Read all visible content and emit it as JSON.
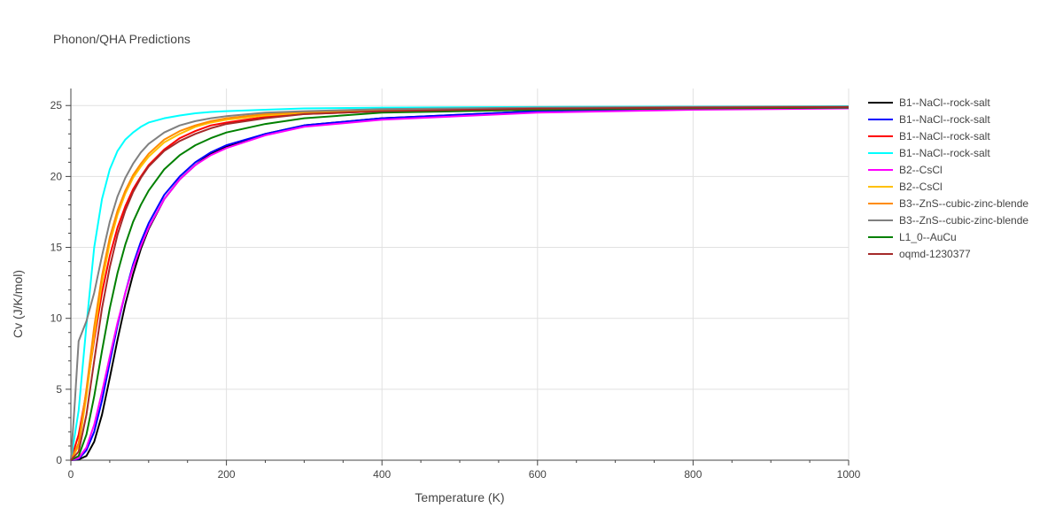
{
  "chart_data": {
    "type": "line",
    "title": "Phonon/QHA Predictions",
    "xlabel": "Temperature (K)",
    "ylabel": "Cv (J/K/mol)",
    "xlim": [
      0,
      1000
    ],
    "ylim": [
      0,
      26.2
    ],
    "x_ticks": [
      0,
      200,
      400,
      600,
      800,
      1000
    ],
    "y_ticks": [
      0,
      5,
      10,
      15,
      20,
      25
    ],
    "grid": true,
    "legend_position": "right",
    "series": [
      {
        "name": "B1--NaCl--rock-salt",
        "color": "#000000",
        "x": [
          0,
          10,
          20,
          30,
          40,
          50,
          60,
          70,
          80,
          90,
          100,
          120,
          140,
          160,
          180,
          200,
          250,
          300,
          400,
          600,
          800,
          1000
        ],
        "y": [
          0,
          0.05,
          0.3,
          1.3,
          3.2,
          5.8,
          8.5,
          11.0,
          13.1,
          14.9,
          16.3,
          18.4,
          19.8,
          20.8,
          21.6,
          22.1,
          23.0,
          23.6,
          24.1,
          24.6,
          24.75,
          24.85
        ]
      },
      {
        "name": "B1--NaCl--rock-salt",
        "color": "#0000ff",
        "x": [
          0,
          10,
          20,
          30,
          40,
          50,
          60,
          70,
          80,
          90,
          100,
          120,
          140,
          160,
          180,
          200,
          250,
          300,
          400,
          600,
          800,
          1000
        ],
        "y": [
          0,
          0.1,
          0.7,
          2.0,
          4.2,
          6.9,
          9.5,
          11.8,
          13.8,
          15.4,
          16.7,
          18.7,
          20.0,
          21.0,
          21.7,
          22.2,
          23.0,
          23.6,
          24.1,
          24.6,
          24.75,
          24.85
        ]
      },
      {
        "name": "B1--NaCl--rock-salt",
        "color": "#ff0000",
        "x": [
          0,
          10,
          20,
          30,
          40,
          50,
          60,
          70,
          80,
          90,
          100,
          120,
          140,
          160,
          180,
          200,
          250,
          300,
          400,
          600,
          800,
          1000
        ],
        "y": [
          0,
          1.8,
          4.8,
          8.5,
          11.8,
          14.4,
          16.4,
          17.9,
          19.1,
          20.0,
          20.8,
          21.9,
          22.7,
          23.2,
          23.6,
          23.8,
          24.2,
          24.4,
          24.6,
          24.75,
          24.85,
          24.9
        ]
      },
      {
        "name": "B1--NaCl--rock-salt",
        "color": "#00ffff",
        "x": [
          0,
          10,
          20,
          30,
          40,
          50,
          60,
          70,
          80,
          90,
          100,
          120,
          140,
          160,
          180,
          200,
          250,
          300,
          400,
          600,
          800,
          1000
        ],
        "y": [
          0,
          3.5,
          9.5,
          15.0,
          18.4,
          20.5,
          21.8,
          22.6,
          23.1,
          23.5,
          23.8,
          24.1,
          24.3,
          24.45,
          24.55,
          24.6,
          24.7,
          24.8,
          24.85,
          24.9,
          24.92,
          24.95
        ]
      },
      {
        "name": "B2--CsCl",
        "color": "#ff00ff",
        "x": [
          0,
          10,
          20,
          30,
          40,
          50,
          60,
          70,
          80,
          90,
          100,
          120,
          140,
          160,
          180,
          200,
          250,
          300,
          400,
          600,
          800,
          1000
        ],
        "y": [
          0,
          0.15,
          0.9,
          2.5,
          4.8,
          7.3,
          9.7,
          11.8,
          13.6,
          15.1,
          16.4,
          18.4,
          19.8,
          20.8,
          21.5,
          22.0,
          22.9,
          23.5,
          24.0,
          24.5,
          24.7,
          24.8
        ]
      },
      {
        "name": "B2--CsCl",
        "color": "#ffc000",
        "x": [
          0,
          10,
          20,
          30,
          40,
          50,
          60,
          70,
          80,
          90,
          100,
          120,
          140,
          160,
          180,
          200,
          250,
          300,
          400,
          600,
          800,
          1000
        ],
        "y": [
          0,
          1.0,
          4.5,
          8.8,
          12.5,
          15.3,
          17.3,
          18.8,
          19.9,
          20.7,
          21.4,
          22.4,
          23.0,
          23.5,
          23.8,
          24.0,
          24.3,
          24.5,
          24.7,
          24.8,
          24.85,
          24.9
        ]
      },
      {
        "name": "B3--ZnS--cubic-zinc-blende",
        "color": "#ff8c00",
        "x": [
          0,
          10,
          20,
          30,
          40,
          50,
          60,
          70,
          80,
          90,
          100,
          120,
          140,
          160,
          180,
          200,
          250,
          300,
          400,
          600,
          800,
          1000
        ],
        "y": [
          0,
          1.2,
          5.0,
          9.4,
          13.0,
          15.7,
          17.6,
          19.0,
          20.1,
          20.9,
          21.6,
          22.6,
          23.2,
          23.6,
          23.9,
          24.1,
          24.4,
          24.55,
          24.7,
          24.82,
          24.88,
          24.92
        ]
      },
      {
        "name": "B3--ZnS--cubic-zinc-blende",
        "color": "#808080",
        "x": [
          0,
          5,
          10,
          20,
          30,
          40,
          50,
          60,
          70,
          80,
          90,
          100,
          120,
          140,
          160,
          180,
          200,
          250,
          300,
          400,
          600,
          800,
          1000
        ],
        "y": [
          0,
          4.0,
          8.4,
          9.8,
          11.8,
          14.4,
          16.8,
          18.6,
          19.9,
          20.9,
          21.7,
          22.3,
          23.1,
          23.6,
          23.9,
          24.1,
          24.25,
          24.5,
          24.6,
          24.75,
          24.85,
          24.9,
          24.92
        ]
      },
      {
        "name": "L1_0--AuCu",
        "color": "#008000",
        "x": [
          0,
          10,
          20,
          30,
          40,
          50,
          60,
          70,
          80,
          90,
          100,
          120,
          140,
          160,
          180,
          200,
          250,
          300,
          400,
          600,
          800,
          1000
        ],
        "y": [
          0,
          0.3,
          1.8,
          4.5,
          7.7,
          10.7,
          13.2,
          15.2,
          16.8,
          18.0,
          19.0,
          20.5,
          21.5,
          22.2,
          22.7,
          23.1,
          23.7,
          24.1,
          24.5,
          24.7,
          24.8,
          24.85
        ]
      },
      {
        "name": "oqmd-1230377",
        "color": "#a52a2a",
        "x": [
          0,
          10,
          20,
          30,
          40,
          50,
          60,
          70,
          80,
          90,
          100,
          120,
          140,
          160,
          180,
          200,
          250,
          300,
          400,
          600,
          800,
          1000
        ],
        "y": [
          0,
          0.6,
          3.2,
          7.0,
          10.7,
          13.6,
          15.9,
          17.6,
          18.9,
          19.9,
          20.7,
          21.8,
          22.5,
          23.0,
          23.4,
          23.7,
          24.1,
          24.4,
          24.6,
          24.78,
          24.85,
          24.9
        ]
      }
    ]
  }
}
